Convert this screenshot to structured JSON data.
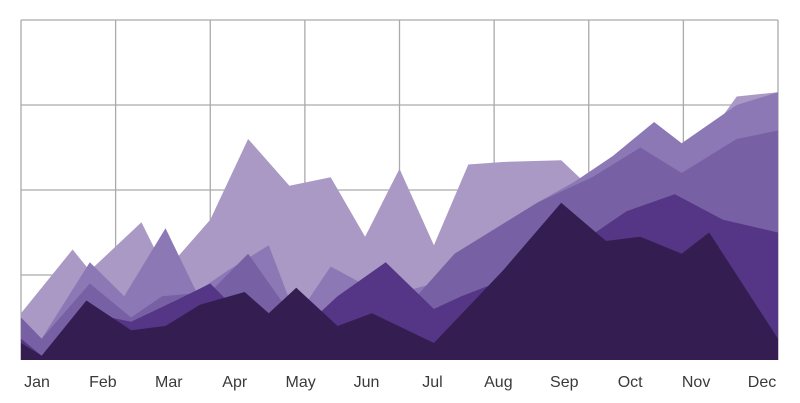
{
  "chart_data": {
    "type": "area",
    "title": "",
    "xlabel": "",
    "ylabel": "",
    "categories": [
      "Jan",
      "Feb",
      "Mar",
      "Apr",
      "May",
      "Jun",
      "Jul",
      "Aug",
      "Sep",
      "Oct",
      "Nov",
      "Dec"
    ],
    "x_range": [
      0,
      11
    ],
    "ylim": [
      0,
      4
    ],
    "y_gridlines": [
      1,
      2,
      3,
      4
    ],
    "grid": true,
    "legend": "none",
    "colors": [
      "#a999c4",
      "#8c78b4",
      "#7760a3",
      "#553585",
      "#341d51"
    ],
    "series": [
      {
        "values": [
          [
            0,
            0.55
          ],
          [
            0.75,
            1.3
          ],
          [
            1.0,
            1.05
          ],
          [
            1.75,
            1.62
          ],
          [
            2.1,
            1.05
          ],
          [
            2.75,
            1.65
          ],
          [
            3.3,
            2.6
          ],
          [
            3.9,
            2.05
          ],
          [
            4.5,
            2.15
          ],
          [
            5.0,
            1.45
          ],
          [
            5.5,
            2.25
          ],
          [
            6.0,
            1.35
          ],
          [
            6.5,
            2.3
          ],
          [
            7.0,
            2.33
          ],
          [
            7.85,
            2.35
          ],
          [
            8.4,
            1.93
          ],
          [
            9.0,
            2.5
          ],
          [
            9.6,
            2.2
          ],
          [
            10.4,
            3.1
          ],
          [
            11,
            3.15
          ]
        ]
      },
      {
        "values": [
          [
            0,
            0.5
          ],
          [
            0.3,
            0.25
          ],
          [
            1.0,
            1.15
          ],
          [
            1.5,
            0.75
          ],
          [
            2.1,
            1.55
          ],
          [
            2.55,
            0.8
          ],
          [
            3.0,
            1.05
          ],
          [
            3.6,
            1.35
          ],
          [
            4.0,
            0.5
          ],
          [
            4.5,
            1.1
          ],
          [
            5.3,
            0.75
          ],
          [
            6.0,
            0.9
          ],
          [
            6.8,
            1.4
          ],
          [
            7.5,
            1.85
          ],
          [
            8.05,
            2.1
          ],
          [
            8.6,
            2.4
          ],
          [
            9.2,
            2.8
          ],
          [
            9.6,
            2.55
          ],
          [
            10.4,
            3.0
          ],
          [
            11,
            3.15
          ]
        ]
      },
      {
        "values": [
          [
            0,
            0.5
          ],
          [
            0.3,
            0.25
          ],
          [
            1.0,
            0.9
          ],
          [
            1.6,
            0.5
          ],
          [
            2.05,
            0.75
          ],
          [
            2.75,
            0.8
          ],
          [
            3.3,
            1.25
          ],
          [
            4.0,
            0.45
          ],
          [
            4.6,
            0.6
          ],
          [
            5.3,
            0.55
          ],
          [
            5.75,
            0.75
          ],
          [
            6.3,
            1.25
          ],
          [
            7.5,
            1.85
          ],
          [
            8.3,
            2.15
          ],
          [
            9.0,
            2.5
          ],
          [
            9.6,
            2.2
          ],
          [
            10.4,
            2.6
          ],
          [
            11,
            2.7
          ]
        ]
      },
      {
        "values": [
          [
            0,
            0.25
          ],
          [
            0.3,
            0.05
          ],
          [
            1.0,
            0.55
          ],
          [
            1.6,
            0.45
          ],
          [
            2.25,
            0.7
          ],
          [
            2.75,
            0.9
          ],
          [
            3.3,
            0.45
          ],
          [
            4.0,
            0.3
          ],
          [
            4.6,
            0.75
          ],
          [
            5.3,
            1.15
          ],
          [
            6.0,
            0.6
          ],
          [
            6.4,
            0.75
          ],
          [
            7.2,
            1.0
          ],
          [
            7.8,
            1.2
          ],
          [
            8.8,
            1.75
          ],
          [
            9.5,
            1.95
          ],
          [
            10.2,
            1.65
          ],
          [
            11,
            1.5
          ]
        ]
      },
      {
        "values": [
          [
            0,
            0.2
          ],
          [
            0.3,
            0.05
          ],
          [
            0.95,
            0.7
          ],
          [
            1.6,
            0.35
          ],
          [
            2.1,
            0.4
          ],
          [
            2.6,
            0.65
          ],
          [
            3.25,
            0.8
          ],
          [
            3.6,
            0.55
          ],
          [
            4.0,
            0.85
          ],
          [
            4.6,
            0.4
          ],
          [
            5.1,
            0.55
          ],
          [
            6.0,
            0.2
          ],
          [
            7.0,
            1.05
          ],
          [
            7.85,
            1.85
          ],
          [
            8.5,
            1.4
          ],
          [
            9.0,
            1.45
          ],
          [
            9.6,
            1.25
          ],
          [
            10.0,
            1.5
          ],
          [
            11,
            0.25
          ]
        ]
      }
    ]
  }
}
